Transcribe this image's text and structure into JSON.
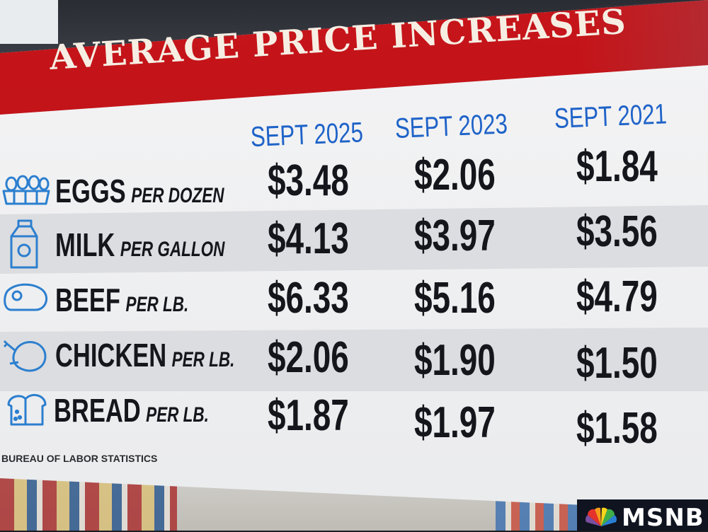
{
  "title": "AVERAGE PRICE INCREASES",
  "columns": [
    "SEPT 2025",
    "SEPT 2023",
    "SEPT 2021"
  ],
  "rows": [
    {
      "item": "EGGS",
      "unit": "PER DOZEN",
      "icon": "egg-carton-icon",
      "prices": [
        "$3.48",
        "$2.06",
        "$1.84"
      ]
    },
    {
      "item": "MILK",
      "unit": "PER GALLON",
      "icon": "milk-carton-icon",
      "prices": [
        "$4.13",
        "$3.97",
        "$3.56"
      ]
    },
    {
      "item": "BEEF",
      "unit": "PER LB.",
      "icon": "steak-icon",
      "prices": [
        "$6.33",
        "$5.16",
        "$4.79"
      ]
    },
    {
      "item": "CHICKEN",
      "unit": "PER LB.",
      "icon": "roast-chicken-icon",
      "prices": [
        "$2.06",
        "$1.90",
        "$1.50"
      ]
    },
    {
      "item": "BREAD",
      "unit": "PER LB.",
      "icon": "bread-loaf-icon",
      "prices": [
        "$1.87",
        "$1.97",
        "$1.58"
      ]
    }
  ],
  "source": "BUREAU OF LABOR STATISTICS",
  "network_logo": "MSNB",
  "colors": {
    "header_red": "#c6151a",
    "title_text": "#f6eee3",
    "column_blue": "#1f63c8",
    "price_text": "#15161c",
    "icon_blue": "#2c7fcf"
  }
}
